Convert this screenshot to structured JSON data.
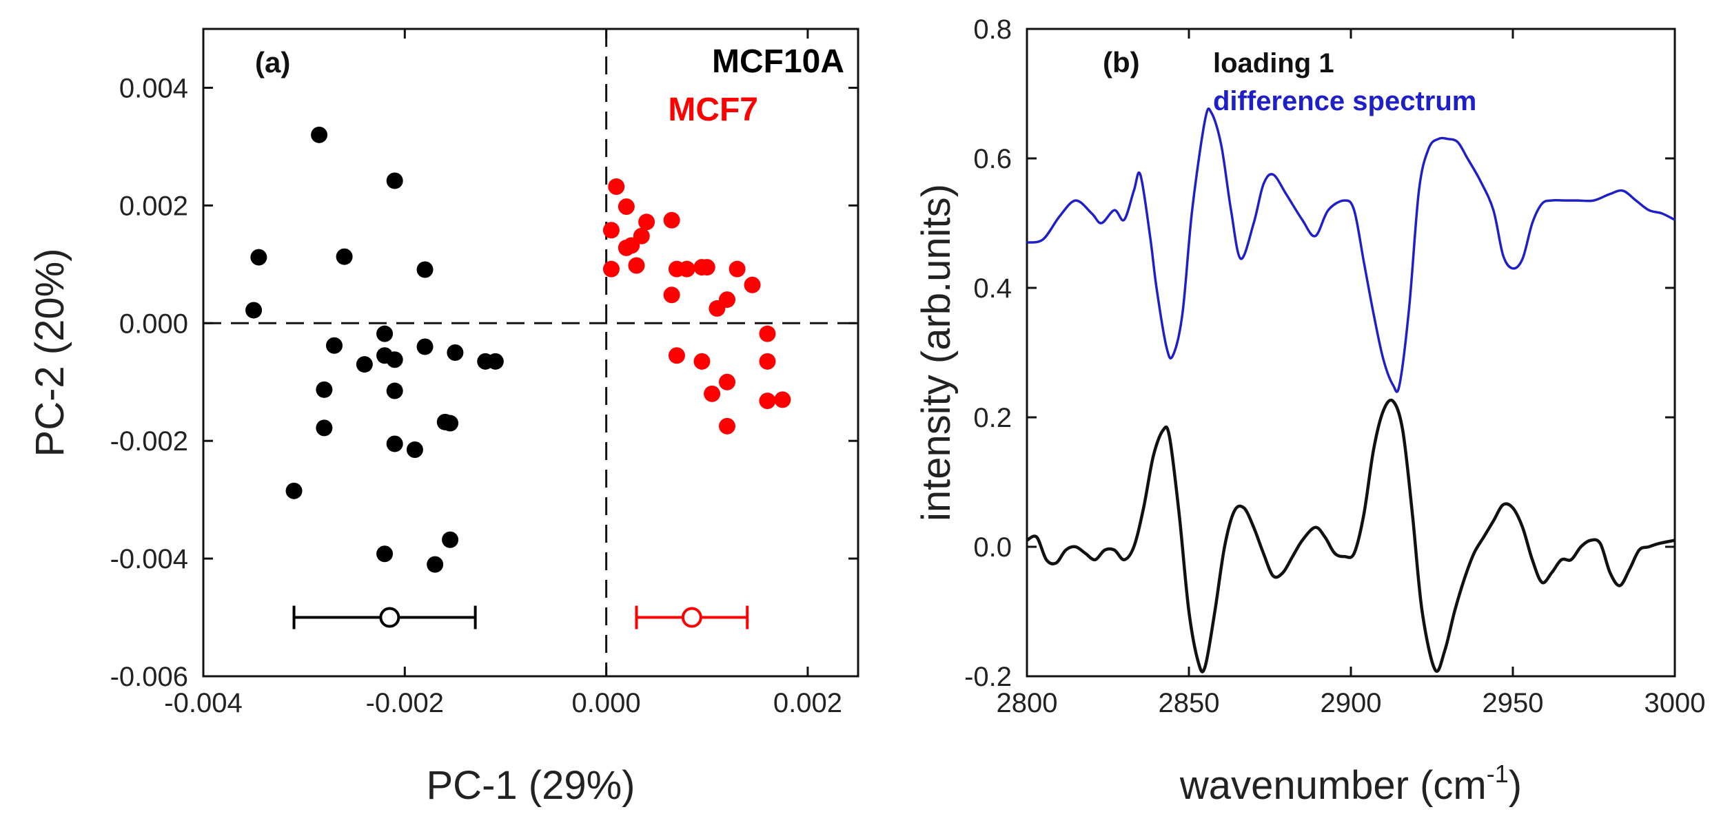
{
  "colors": {
    "mcf10a": "#000000",
    "mcf7": "#ff0000",
    "difference": "#1f1fc8",
    "loading": "#111111"
  },
  "chart_data": [
    {
      "type": "scatter",
      "panel_label": "(a)",
      "xlabel": "PC-1 (29%)",
      "ylabel": "PC-2 (20%)",
      "xlim": [
        -0.004,
        0.0025
      ],
      "ylim": [
        -0.006,
        0.005
      ],
      "xticks": [
        -0.004,
        -0.002,
        0.0,
        0.002
      ],
      "xtick_labels": [
        "-0.004",
        "-0.002",
        "0.000",
        "0.002"
      ],
      "yticks": [
        -0.006,
        -0.004,
        -0.002,
        0.0,
        0.002,
        0.004
      ],
      "ytick_labels": [
        "-0.006",
        "-0.004",
        "-0.002",
        "0.000",
        "0.002",
        "0.004"
      ],
      "reference_lines": {
        "x": 0.0,
        "y": 0.0,
        "style": "dashed"
      },
      "series": [
        {
          "name": "MCF10A",
          "color": "#000000",
          "x": [
            -0.00285,
            -0.0021,
            -0.00345,
            -0.0035,
            -0.0026,
            -0.0018,
            -0.0027,
            -0.0022,
            -0.0022,
            -0.0024,
            -0.0021,
            -0.0021,
            -0.0018,
            -0.0015,
            -0.0012,
            -0.0011,
            -0.0028,
            -0.0021,
            -0.0028,
            -0.0016,
            -0.00155,
            -0.0019,
            -0.0031,
            -0.0022,
            -0.00155,
            -0.0017
          ],
          "y": [
            0.0032,
            0.00242,
            0.00112,
            0.00022,
            0.00113,
            0.00091,
            -0.00038,
            -0.00018,
            -0.00055,
            -0.0007,
            -0.00062,
            -0.00115,
            -0.0004,
            -0.0005,
            -0.00065,
            -0.00065,
            -0.00113,
            -0.00205,
            -0.00178,
            -0.00168,
            -0.0017,
            -0.00215,
            -0.00285,
            -0.00392,
            -0.00368,
            -0.0041
          ],
          "mean": {
            "x": -0.00215,
            "y": -0.005
          },
          "error_x": [
            -0.0031,
            -0.0013
          ]
        },
        {
          "name": "MCF7",
          "color": "#ff0000",
          "x": [
            0.0001,
            0.0002,
            0.00025,
            0.00035,
            0.0002,
            5e-05,
            0.0004,
            0.00065,
            0.0003,
            5e-05,
            0.0008,
            0.0007,
            0.001,
            0.00095,
            0.0013,
            0.00145,
            0.0012,
            0.00065,
            0.0011,
            0.0016,
            0.00095,
            0.0016,
            0.0012,
            0.00105,
            0.0016,
            0.00175,
            0.0012,
            0.0007
          ],
          "y": [
            0.00232,
            0.00198,
            0.00132,
            0.00148,
            0.00128,
            0.00158,
            0.00172,
            0.00175,
            0.00098,
            0.00092,
            0.00092,
            0.00092,
            0.00095,
            0.00095,
            0.00092,
            0.00065,
            0.0004,
            0.00048,
            0.00025,
            -0.00018,
            -0.00065,
            -0.00065,
            -0.001,
            -0.0012,
            -0.00132,
            -0.0013,
            -0.00175,
            -0.00055
          ],
          "mean": {
            "x": 0.00085,
            "y": -0.005
          },
          "error_x": [
            0.0003,
            0.0014
          ]
        }
      ],
      "legend": [
        {
          "label": "MCF10A",
          "color": "#000000"
        },
        {
          "label": "MCF7",
          "color": "#ff0000"
        }
      ]
    },
    {
      "type": "line",
      "panel_label": "(b)",
      "xlabel": "wavenumber (cm",
      "xlabel_sup": "-1",
      "xlabel_close": ")",
      "ylabel": "intensity (arb.units)",
      "xlim": [
        2800,
        3000
      ],
      "ylim": [
        -0.2,
        0.8
      ],
      "xticks": [
        2800,
        2850,
        2900,
        2950,
        3000
      ],
      "xtick_labels": [
        "2800",
        "2850",
        "2900",
        "2950",
        "3000"
      ],
      "yticks": [
        -0.2,
        0.0,
        0.2,
        0.4,
        0.6,
        0.8
      ],
      "ytick_labels": [
        "-0.2",
        "0.0",
        "0.2",
        "0.4",
        "0.6",
        "0.8"
      ],
      "series": [
        {
          "name": "difference spectrum",
          "color": "#1f1fc8",
          "x": [
            2800,
            2805,
            2810,
            2815,
            2820,
            2823,
            2827,
            2830,
            2833,
            2835,
            2838,
            2840,
            2843,
            2845,
            2848,
            2851,
            2855,
            2857,
            2860,
            2863,
            2866,
            2870,
            2873,
            2876,
            2880,
            2885,
            2889,
            2893,
            2898,
            2901,
            2904,
            2907,
            2910,
            2913,
            2915,
            2918,
            2921,
            2924,
            2927,
            2930,
            2933,
            2936,
            2940,
            2944,
            2947,
            2950,
            2953,
            2956,
            2959,
            2962,
            2966,
            2970,
            2975,
            2980,
            2984,
            2988,
            2992,
            2996,
            3000
          ],
          "y": [
            0.47,
            0.475,
            0.51,
            0.535,
            0.515,
            0.5,
            0.52,
            0.505,
            0.55,
            0.575,
            0.48,
            0.4,
            0.31,
            0.295,
            0.36,
            0.52,
            0.66,
            0.67,
            0.62,
            0.52,
            0.445,
            0.5,
            0.56,
            0.575,
            0.545,
            0.505,
            0.48,
            0.52,
            0.535,
            0.52,
            0.44,
            0.36,
            0.29,
            0.25,
            0.25,
            0.37,
            0.55,
            0.615,
            0.63,
            0.63,
            0.625,
            0.6,
            0.565,
            0.52,
            0.45,
            0.43,
            0.445,
            0.5,
            0.53,
            0.535,
            0.535,
            0.535,
            0.535,
            0.545,
            0.55,
            0.535,
            0.52,
            0.515,
            0.505
          ]
        },
        {
          "name": "loading 1",
          "color": "#111111",
          "x": [
            2800,
            2803,
            2806,
            2809,
            2812,
            2815,
            2818,
            2821,
            2824,
            2827,
            2830,
            2833,
            2836,
            2839,
            2842,
            2844,
            2847,
            2850,
            2853,
            2855,
            2858,
            2861,
            2864,
            2867,
            2870,
            2873,
            2876,
            2879,
            2882,
            2885,
            2889,
            2892,
            2895,
            2898,
            2901,
            2904,
            2907,
            2910,
            2913,
            2916,
            2919,
            2922,
            2926,
            2929,
            2932,
            2935,
            2938,
            2941,
            2944,
            2947,
            2950,
            2953,
            2956,
            2959,
            2962,
            2965,
            2968,
            2971,
            2974,
            2977,
            2980,
            2983,
            2986,
            2989,
            2992,
            2995,
            3000
          ],
          "y": [
            0.01,
            0.015,
            -0.02,
            -0.025,
            -0.005,
            0.0,
            -0.01,
            -0.02,
            -0.005,
            -0.005,
            -0.02,
            0.0,
            0.06,
            0.14,
            0.18,
            0.17,
            0.05,
            -0.1,
            -0.18,
            -0.185,
            -0.1,
            0.0,
            0.055,
            0.06,
            0.03,
            -0.01,
            -0.045,
            -0.04,
            -0.015,
            0.01,
            0.03,
            0.015,
            -0.01,
            -0.015,
            -0.01,
            0.05,
            0.15,
            0.21,
            0.225,
            0.18,
            0.05,
            -0.1,
            -0.19,
            -0.16,
            -0.1,
            -0.05,
            -0.01,
            0.015,
            0.04,
            0.065,
            0.06,
            0.03,
            -0.02,
            -0.055,
            -0.04,
            -0.02,
            -0.02,
            0.0,
            0.01,
            0.005,
            -0.04,
            -0.06,
            -0.035,
            -0.005,
            0.0,
            0.005,
            0.01
          ]
        }
      ],
      "legend": [
        {
          "label": "loading 1",
          "color": "#111111"
        },
        {
          "label": "difference spectrum",
          "color": "#1f1fc8"
        }
      ]
    }
  ]
}
